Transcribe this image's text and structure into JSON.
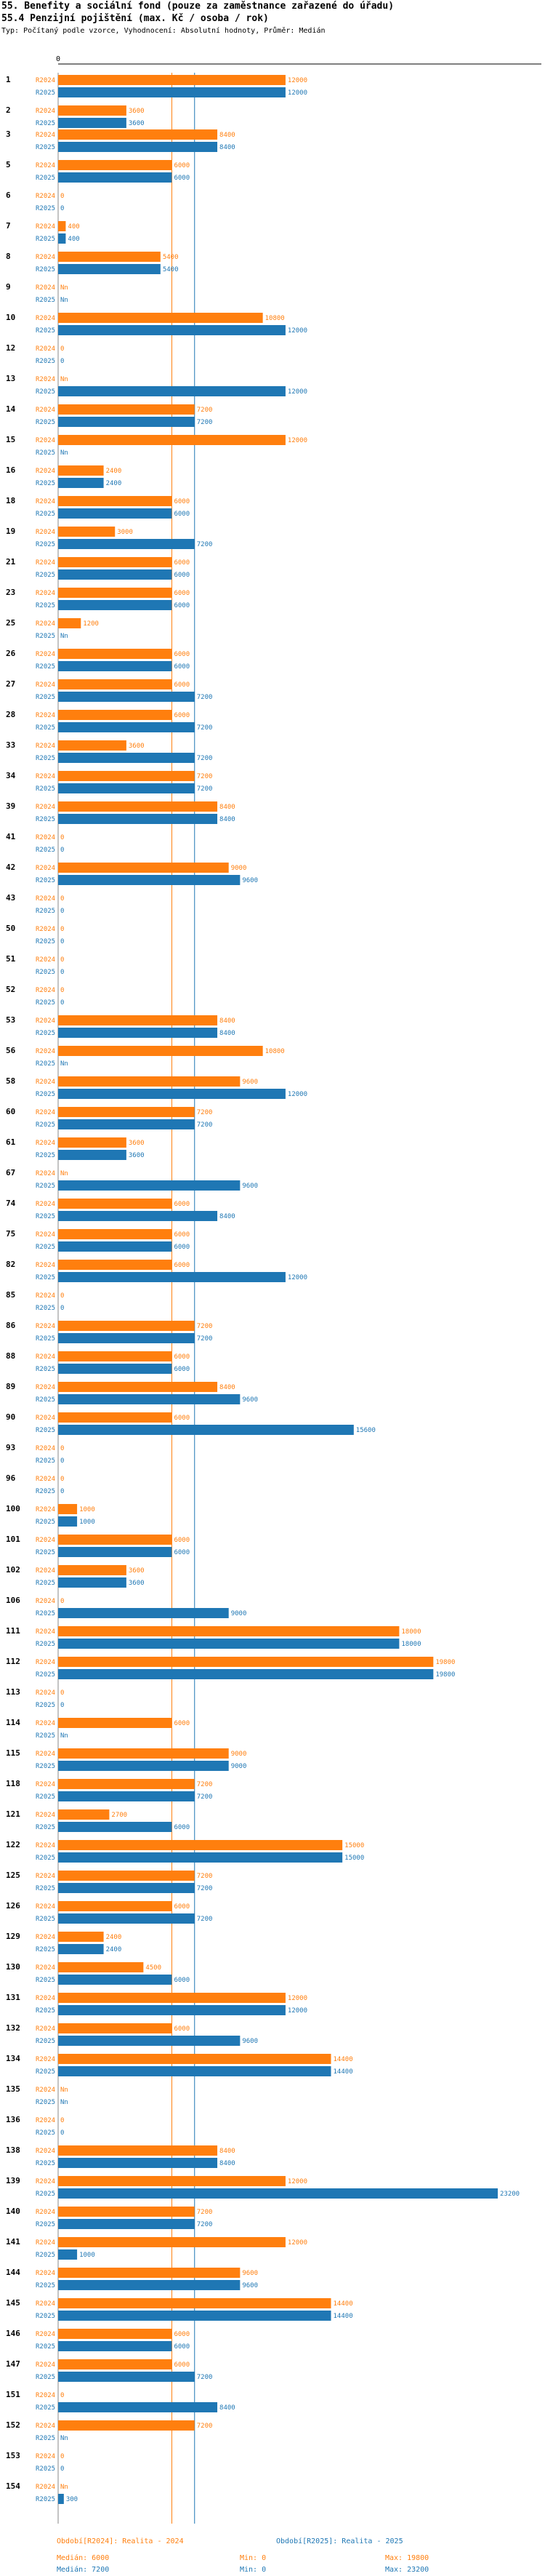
{
  "header": {
    "title": "55. Benefity a sociální fond (pouze za zaměstnance zařazené do úřadu)",
    "subtitle": "55.4 Penzijní pojištění (max. Kč / osoba / rok)",
    "note": "Typ: Počítaný podle vzorce, Vyhodnocení: Absolutní hodnoty, Průměr: Medián"
  },
  "chart_data": {
    "type": "bar",
    "orientation": "horizontal",
    "x_tick_labels": [
      "0"
    ],
    "xlim": [
      0,
      25000
    ],
    "series": [
      {
        "name": "R2024",
        "color": "#ff7f0e"
      },
      {
        "name": "R2025",
        "color": "#1f77b4"
      }
    ],
    "categories": [
      "1",
      "2",
      "3",
      "5",
      "6",
      "7",
      "8",
      "9",
      "10",
      "12",
      "13",
      "14",
      "15",
      "16",
      "18",
      "19",
      "21",
      "23",
      "25",
      "26",
      "27",
      "28",
      "33",
      "34",
      "39",
      "41",
      "42",
      "43",
      "50",
      "51",
      "52",
      "53",
      "56",
      "58",
      "60",
      "61",
      "67",
      "74",
      "75",
      "82",
      "85",
      "86",
      "88",
      "89",
      "90",
      "93",
      "96",
      "100",
      "101",
      "102",
      "106",
      "111",
      "112",
      "113",
      "114",
      "115",
      "118",
      "121",
      "122",
      "125",
      "126",
      "129",
      "130",
      "131",
      "132",
      "134",
      "135",
      "136",
      "138",
      "139",
      "140",
      "141",
      "144",
      "145",
      "146",
      "147",
      "151",
      "152",
      "153",
      "154"
    ],
    "values_2024": [
      12000,
      3600,
      8400,
      6000,
      0,
      400,
      5400,
      "Nn",
      10800,
      0,
      "Nn",
      7200,
      12000,
      2400,
      6000,
      3000,
      6000,
      6000,
      1200,
      6000,
      6000,
      6000,
      3600,
      7200,
      8400,
      0,
      9000,
      0,
      0,
      0,
      0,
      8400,
      10800,
      9600,
      7200,
      3600,
      "Nn",
      6000,
      6000,
      6000,
      0,
      7200,
      6000,
      8400,
      6000,
      0,
      0,
      1000,
      6000,
      3600,
      0,
      18000,
      19800,
      0,
      6000,
      9000,
      7200,
      2700,
      15000,
      7200,
      6000,
      2400,
      4500,
      12000,
      6000,
      14400,
      "Nn",
      0,
      8400,
      12000,
      7200,
      12000,
      9600,
      14400,
      6000,
      6000,
      0,
      7200,
      0,
      "Nn"
    ],
    "values_2025": [
      12000,
      3600,
      8400,
      6000,
      0,
      400,
      5400,
      "Nn",
      12000,
      0,
      12000,
      7200,
      "Nn",
      2400,
      6000,
      7200,
      6000,
      6000,
      "Nn",
      6000,
      7200,
      7200,
      7200,
      7200,
      8400,
      0,
      9600,
      0,
      0,
      0,
      0,
      8400,
      "Nn",
      12000,
      7200,
      3600,
      9600,
      8400,
      6000,
      12000,
      0,
      7200,
      6000,
      9600,
      15600,
      0,
      0,
      1000,
      6000,
      3600,
      9000,
      18000,
      19800,
      0,
      "Nn",
      9000,
      7200,
      6000,
      15000,
      7200,
      7200,
      2400,
      6000,
      12000,
      9600,
      14400,
      "Nn",
      0,
      8400,
      23200,
      7200,
      1000,
      9600,
      14400,
      6000,
      7200,
      8400,
      "Nn",
      0,
      300
    ],
    "labels_2024": [
      "12000",
      "3600",
      "8400",
      "6000",
      "0",
      "400",
      "5400",
      "Nn",
      "10800",
      "0",
      "Nn",
      "7200",
      "12000",
      "2400",
      "6000",
      "3000",
      "6000",
      "6000",
      "1200",
      "6000",
      "6000",
      "6000",
      "3600",
      "7200",
      "8400",
      "0",
      "9000",
      "0",
      "0",
      "0",
      "0",
      "8400",
      "10800",
      "9600",
      "7200",
      "3600",
      "Nn",
      "6000",
      "6000",
      "6000",
      "0",
      "7200",
      "6000",
      "8400",
      "6000",
      "0",
      "0",
      "1000",
      "6000",
      "3600",
      "0",
      "18000",
      "19800",
      "0",
      "6000",
      "9000",
      "7200",
      "2700",
      "15000",
      "7200",
      "6000",
      "2400",
      "4500",
      "12000",
      "6000",
      "14400",
      "Nn",
      "0",
      "8400",
      "12000",
      "7200",
      "12000",
      "9600",
      "14400",
      "6000",
      "6000",
      "0",
      "7200",
      "0",
      "Nn"
    ],
    "labels_2025": [
      "12000",
      "3600",
      "8400",
      "6000",
      "0",
      "400",
      "5400",
      "Nn",
      "12000",
      "0",
      "12000",
      "7200",
      "Nn",
      "2400",
      "6000",
      "7200",
      "6000",
      "6000",
      "Nn",
      "6000",
      "7200",
      "7200",
      "7200",
      "7200",
      "8400",
      "0",
      "9600",
      "0",
      "0",
      "0",
      "0",
      "8400",
      "Nn",
      "12000",
      "7200",
      "3600",
      "9600",
      "8400",
      "6000",
      "12000",
      "0",
      "7200",
      "6000",
      "9600",
      "15600",
      "0",
      "0",
      "1000",
      "6000",
      "3600",
      "9000",
      "18000",
      "19800",
      "0",
      "Nn",
      "9000",
      "7200",
      "6000",
      "15000",
      "7200",
      "7200",
      "2400",
      "6000",
      "12000",
      "9600",
      "14400",
      "Nn",
      "0",
      "8400",
      "23200",
      "7200",
      "1000",
      "9600",
      "14400",
      "6000",
      "7200",
      "8400",
      "Nn",
      "0",
      "300"
    ],
    "median_2024": 6000,
    "median_2025": 7200
  },
  "legend": {
    "r2024_label": "Období[R2024]: Realita - 2024",
    "r2025_label": "Období[R2025]: Realita - 2025",
    "r2024_median": "Medián: 6000",
    "r2024_min": "Min: 0",
    "r2024_max": "Max: 19800",
    "r2025_median": "Medián: 7200",
    "r2025_min": "Min: 0",
    "r2025_max": "Max: 23200"
  }
}
